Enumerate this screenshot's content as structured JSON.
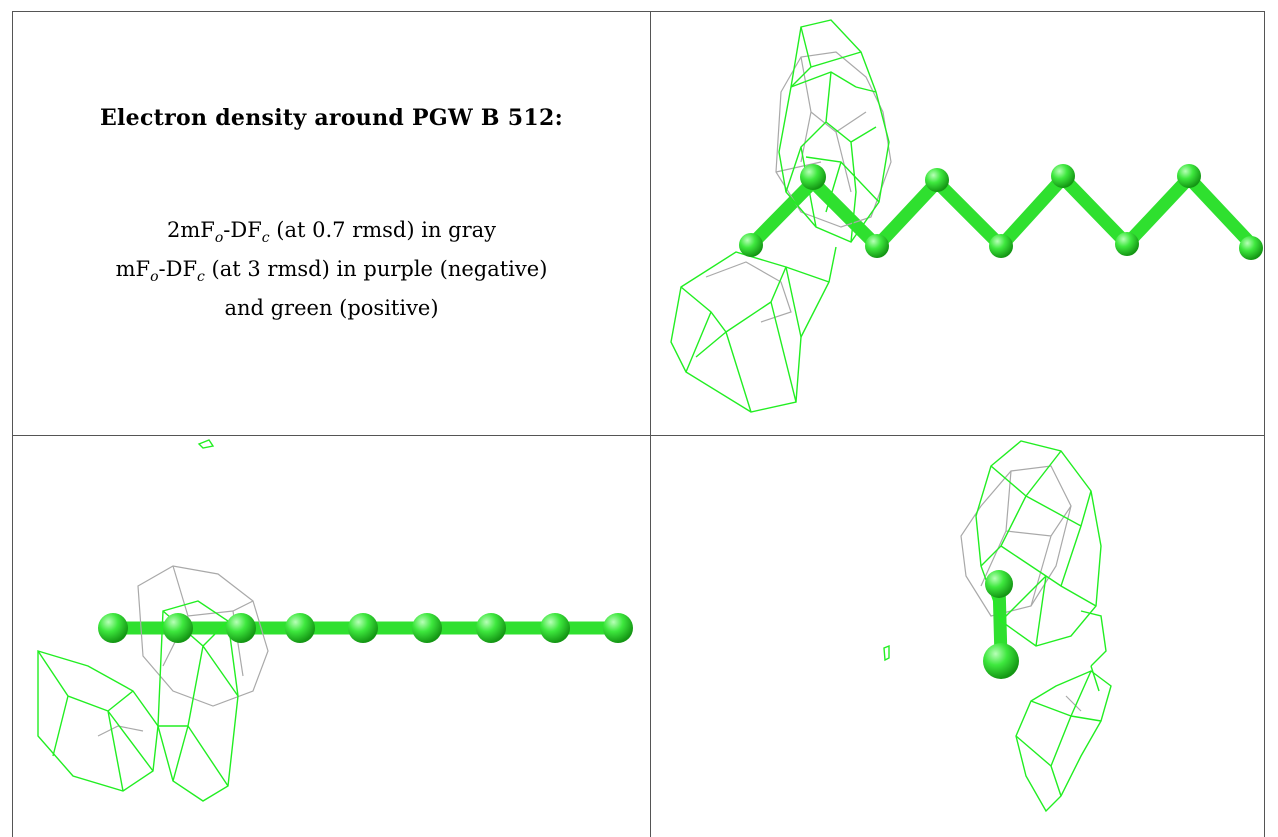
{
  "caption": {
    "title": "Electron density around PGW B 512:",
    "map1_prefix": "2mF",
    "map1_mid": "-DF",
    "map1_sub1": "o",
    "map1_sub2": "c",
    "map1_suffix": " (at 0.7 rmsd) in gray",
    "map2_prefix": "mF",
    "map2_mid": "-DF",
    "map2_sub1": "o",
    "map2_sub2": "c",
    "map2_suffix": " (at 3 rmsd) in purple (negative)",
    "line3": "and green (positive)"
  },
  "colors": {
    "ligand": "#33e033",
    "positive_mesh": "#22ee22",
    "map_2fofc": "#a9a9a9",
    "negative_mesh": "#800080"
  }
}
